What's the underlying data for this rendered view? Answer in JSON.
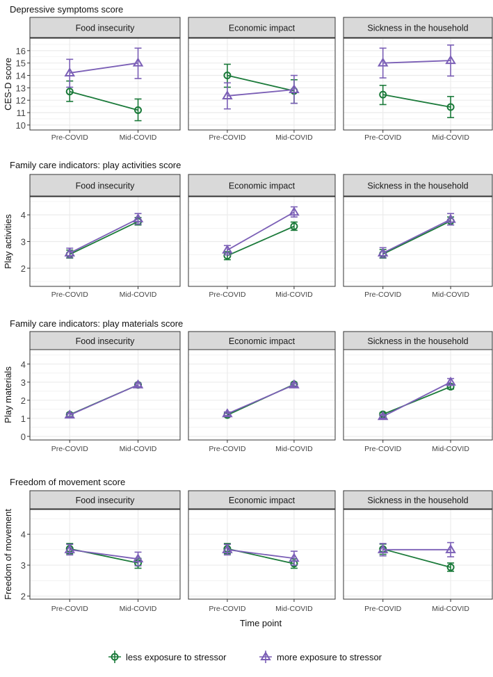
{
  "chart_data": [
    {
      "type": "line",
      "title": "Depressive symptoms score",
      "ylabel": "CES-D score",
      "ylim": [
        9.6,
        17.0
      ],
      "yticks": [
        10,
        11,
        12,
        13,
        14,
        15,
        16
      ],
      "facets": [
        {
          "label": "Food insecurity",
          "series": [
            {
              "name": "less exposure to stressor",
              "values": [
                12.7,
                11.2
              ],
              "lower": [
                11.9,
                10.35
              ],
              "upper": [
                13.55,
                12.1
              ]
            },
            {
              "name": "more exposure to stressor",
              "values": [
                14.2,
                15.0
              ],
              "lower": [
                13.05,
                13.75
              ],
              "upper": [
                15.3,
                16.2
              ]
            }
          ]
        },
        {
          "label": "Economic impact",
          "series": [
            {
              "name": "less exposure to stressor",
              "values": [
                14.0,
                12.75
              ],
              "lower": [
                13.05,
                11.75
              ],
              "upper": [
                14.9,
                13.65
              ]
            },
            {
              "name": "more exposure to stressor",
              "values": [
                12.35,
                12.85
              ],
              "lower": [
                11.3,
                11.75
              ],
              "upper": [
                13.4,
                14.0
              ]
            }
          ]
        },
        {
          "label": "Sickness in the household",
          "series": [
            {
              "name": "less exposure to stressor",
              "values": [
                12.45,
                11.45
              ],
              "lower": [
                11.65,
                10.6
              ],
              "upper": [
                13.2,
                12.3
              ]
            },
            {
              "name": "more exposure to stressor",
              "values": [
                15.0,
                15.2
              ],
              "lower": [
                13.8,
                13.95
              ],
              "upper": [
                16.2,
                16.45
              ]
            }
          ]
        }
      ]
    },
    {
      "type": "line",
      "title": "Family care indicators: play activities score",
      "ylabel": "Play activities",
      "ylim": [
        1.32,
        4.68
      ],
      "yticks": [
        2,
        3,
        4
      ],
      "facets": [
        {
          "label": "Food insecurity",
          "series": [
            {
              "name": "less exposure to stressor",
              "values": [
                2.52,
                3.75
              ],
              "lower": [
                2.38,
                3.62
              ],
              "upper": [
                2.68,
                3.9
              ]
            },
            {
              "name": "more exposure to stressor",
              "values": [
                2.57,
                3.85
              ],
              "lower": [
                2.4,
                3.65
              ],
              "upper": [
                2.75,
                4.05
              ]
            }
          ]
        },
        {
          "label": "Economic impact",
          "series": [
            {
              "name": "less exposure to stressor",
              "values": [
                2.47,
                3.57
              ],
              "lower": [
                2.32,
                3.42
              ],
              "upper": [
                2.62,
                3.73
              ]
            },
            {
              "name": "more exposure to stressor",
              "values": [
                2.68,
                4.1
              ],
              "lower": [
                2.5,
                3.92
              ],
              "upper": [
                2.85,
                4.3
              ]
            }
          ]
        },
        {
          "label": "Sickness in the household",
          "series": [
            {
              "name": "less exposure to stressor",
              "values": [
                2.53,
                3.77
              ],
              "lower": [
                2.38,
                3.62
              ],
              "upper": [
                2.7,
                3.92
              ]
            },
            {
              "name": "more exposure to stressor",
              "values": [
                2.57,
                3.83
              ],
              "lower": [
                2.4,
                3.62
              ],
              "upper": [
                2.77,
                4.05
              ]
            }
          ]
        }
      ]
    },
    {
      "type": "line",
      "title": "Family care indicators: play materials score",
      "ylabel": "Play materials",
      "ylim": [
        -0.2,
        4.8
      ],
      "yticks": [
        0,
        1,
        2,
        3,
        4
      ],
      "facets": [
        {
          "label": "Food insecurity",
          "series": [
            {
              "name": "less exposure to stressor",
              "values": [
                1.2,
                2.85
              ],
              "lower": [
                1.1,
                2.75
              ],
              "upper": [
                1.3,
                2.95
              ]
            },
            {
              "name": "more exposure to stressor",
              "values": [
                1.18,
                2.85
              ],
              "lower": [
                1.08,
                2.75
              ],
              "upper": [
                1.28,
                2.95
              ]
            }
          ]
        },
        {
          "label": "Economic impact",
          "series": [
            {
              "name": "less exposure to stressor",
              "values": [
                1.18,
                2.88
              ],
              "lower": [
                1.08,
                2.78
              ],
              "upper": [
                1.28,
                2.98
              ]
            },
            {
              "name": "more exposure to stressor",
              "values": [
                1.25,
                2.85
              ],
              "lower": [
                1.15,
                2.75
              ],
              "upper": [
                1.35,
                2.95
              ]
            }
          ]
        },
        {
          "label": "Sickness in the household",
          "series": [
            {
              "name": "less exposure to stressor",
              "values": [
                1.22,
                2.75
              ],
              "lower": [
                1.12,
                2.62
              ],
              "upper": [
                1.32,
                2.88
              ]
            },
            {
              "name": "more exposure to stressor",
              "values": [
                1.1,
                3.0
              ],
              "lower": [
                1.0,
                2.82
              ],
              "upper": [
                1.2,
                3.2
              ]
            }
          ]
        }
      ]
    },
    {
      "type": "line",
      "title": "Freedom of movement score",
      "ylabel": "Freedom of movement",
      "xlabel": "Time point",
      "ylim": [
        1.9,
        4.8
      ],
      "yticks": [
        2,
        3,
        4
      ],
      "facets": [
        {
          "label": "Food insecurity",
          "series": [
            {
              "name": "less exposure to stressor",
              "values": [
                3.53,
                3.07
              ],
              "lower": [
                3.37,
                2.9
              ],
              "upper": [
                3.7,
                3.22
              ]
            },
            {
              "name": "more exposure to stressor",
              "values": [
                3.5,
                3.2
              ],
              "lower": [
                3.33,
                2.98
              ],
              "upper": [
                3.67,
                3.42
              ]
            }
          ]
        },
        {
          "label": "Economic impact",
          "series": [
            {
              "name": "less exposure to stressor",
              "values": [
                3.53,
                3.05
              ],
              "lower": [
                3.37,
                2.9
              ],
              "upper": [
                3.7,
                3.2
              ]
            },
            {
              "name": "more exposure to stressor",
              "values": [
                3.5,
                3.22
              ],
              "lower": [
                3.33,
                3.0
              ],
              "upper": [
                3.67,
                3.45
              ]
            }
          ]
        },
        {
          "label": "Sickness in the household",
          "series": [
            {
              "name": "less exposure to stressor",
              "values": [
                3.52,
                2.93
              ],
              "lower": [
                3.35,
                2.8
              ],
              "upper": [
                3.68,
                3.07
              ]
            },
            {
              "name": "more exposure to stressor",
              "values": [
                3.5,
                3.5
              ],
              "lower": [
                3.3,
                3.27
              ],
              "upper": [
                3.7,
                3.73
              ]
            }
          ]
        }
      ]
    }
  ],
  "categories": [
    "Pre-COVID",
    "Mid-COVID"
  ],
  "legend": {
    "position": "bottom",
    "items": [
      "less exposure to stressor",
      "more exposure to stressor"
    ]
  },
  "colors": {
    "less exposure to stressor": "#1b7a3a",
    "more exposure to stressor": "#7b5fb6"
  },
  "grid": true
}
